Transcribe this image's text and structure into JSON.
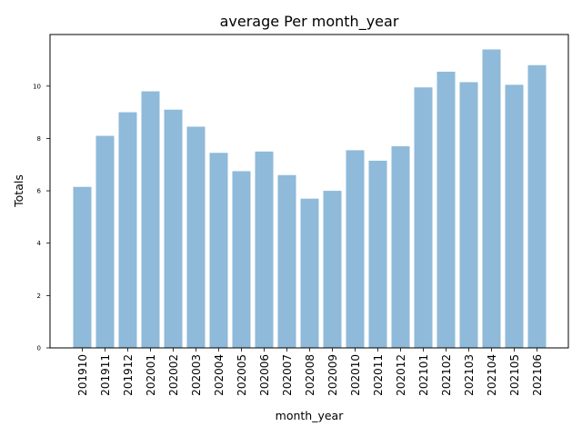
{
  "chart_data": {
    "type": "bar",
    "title": "average Per month_year",
    "xlabel": "month_year",
    "ylabel": "Totals",
    "categories": [
      "201910",
      "201911",
      "201912",
      "202001",
      "202002",
      "202003",
      "202004",
      "202005",
      "202006",
      "202007",
      "202008",
      "202009",
      "202010",
      "202011",
      "202012",
      "202101",
      "202102",
      "202103",
      "202104",
      "202105",
      "202106"
    ],
    "values": [
      6.15,
      8.1,
      9.0,
      9.8,
      9.1,
      8.45,
      7.45,
      6.75,
      7.5,
      6.6,
      5.7,
      6.0,
      7.55,
      7.15,
      7.7,
      9.95,
      10.55,
      10.15,
      11.4,
      10.05,
      10.8
    ],
    "yticks": [
      0,
      2,
      4,
      6,
      8,
      10
    ],
    "ylim": [
      0,
      11.97
    ],
    "bar_color": "#8fbada",
    "grid": false,
    "legend": "none"
  }
}
